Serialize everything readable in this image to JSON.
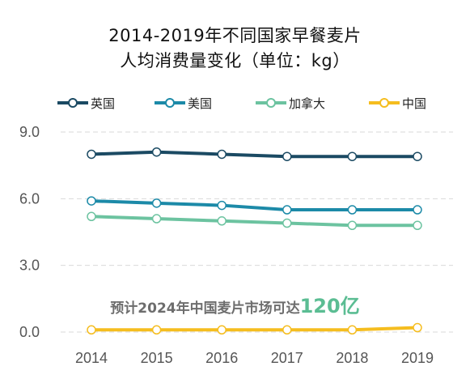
{
  "chart_data": {
    "type": "line",
    "title": "2014-2019年不同国家早餐麦片",
    "subtitle": "人均消费量变化（单位：kg）",
    "xlabel": "",
    "ylabel": "",
    "x": [
      "2014",
      "2015",
      "2016",
      "2017",
      "2018",
      "2019"
    ],
    "yticks": [
      "0.0",
      "3.0",
      "6.0",
      "9.0"
    ],
    "ylim": [
      0,
      9
    ],
    "grid": true,
    "legend_position": "top",
    "series": [
      {
        "name": "英国",
        "color": "#1b4a63",
        "values": [
          8.0,
          8.1,
          8.0,
          7.9,
          7.9,
          7.9
        ]
      },
      {
        "name": "美国",
        "color": "#1c8aa8",
        "values": [
          5.9,
          5.8,
          5.7,
          5.5,
          5.5,
          5.5
        ]
      },
      {
        "name": "加拿大",
        "color": "#6cc3a0",
        "values": [
          5.2,
          5.1,
          5.0,
          4.9,
          4.8,
          4.8
        ]
      },
      {
        "name": "中国",
        "color": "#f5bd1f",
        "values": [
          0.1,
          0.1,
          0.1,
          0.1,
          0.1,
          0.2
        ]
      }
    ],
    "annotation": {
      "text": "预计2024年中国麦片市场可达",
      "highlight": "120亿"
    }
  }
}
